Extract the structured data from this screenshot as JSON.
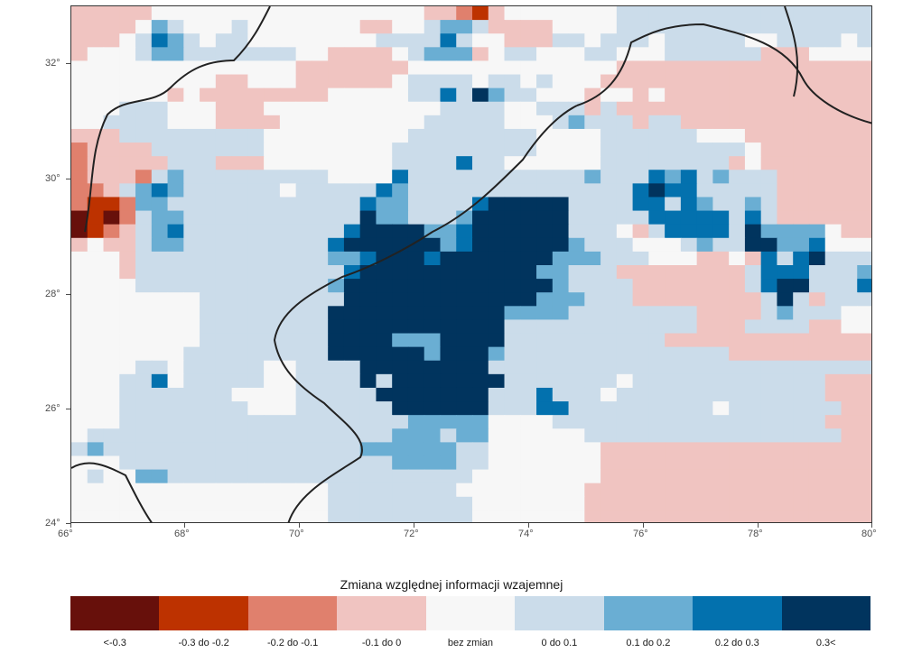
{
  "legend": {
    "title": "Zmiana względnej informacji wzajemnej",
    "classes": [
      {
        "label": "<-0.3",
        "color": "#67100b"
      },
      {
        "label": "-0.3 do -0.2",
        "color": "#bd3200"
      },
      {
        "label": "-0.2 do -0.1",
        "color": "#e0806d"
      },
      {
        "label": "-0.1 do 0",
        "color": "#f0c4c1"
      },
      {
        "label": "bez zmian",
        "color": "#f7f7f7"
      },
      {
        "label": "0 do 0.1",
        "color": "#cbdcea"
      },
      {
        "label": "0.1 do 0.2",
        "color": "#6aaed3"
      },
      {
        "label": "0.2 do 0.3",
        "color": "#0371ae"
      },
      {
        "label": "0.3<",
        "color": "#01345e"
      }
    ]
  },
  "axes": {
    "x": {
      "range": [
        66,
        80
      ],
      "ticks": [
        "66°",
        "68°",
        "70°",
        "72°",
        "74°",
        "76°",
        "78°",
        "80°"
      ]
    },
    "y": {
      "range": [
        24,
        33
      ],
      "ticks": [
        "24°",
        "26°",
        "28°",
        "30°",
        "32°"
      ]
    }
  },
  "chart_data": {
    "type": "heatmap",
    "xlim": [
      66,
      80
    ],
    "ylim": [
      24,
      33
    ],
    "cell_size_deg": 0.5,
    "legend_position": "bottom",
    "grid": false,
    "features": [
      "country borders",
      "coastline"
    ],
    "rows_north_to_south": [
      "33333444444444444444443321344444445555555555555555",
      "33334654445444444433445665333344445555555555555555",
      "33345765455444444445555754433355455545555544555545",
      "34445665555555443333456663455444554445555553334444",
      "44444444444444333333344444444444443333333333333333",
      "44444444433444333333455554554544433333333333333333",
      "44444434333333334444455758655444344343333333333333",
      "44455544433344444444444555544555353333333333333333",
      "44555544433334444444445555544456555355333333333333",
      "33355555555544444444455555555444455555544433333333",
      "23333555555544444444555555555444455555555543333333",
      "23333355533344444444555575544444455555555343333333",
      "23332565555555554444755555555555655576756555333333",
      "22356765555554555557655555555555555787755555333333",
      "21126655555555555576655557888885555775765565333333",
      "01025665555555555586655568888885555577777575333333",
      "01235675555555555788886678888885554357777586666433",
      "34335665555555557888888678888886555444565588667444",
      "44435555555555556678887888888866655544433437578555",
      "44435555555555555788888888888665553333333357775556",
      "44445555555555556888888888888865555333333357885557",
      "44444444555555555888888888888666555333333335853555",
      "44444444555555558888888888866665555555533335655544",
      "44444444555555558888888888855555555555533355553344",
      "44444444555555558888666888855555555553333333333333",
      "44444445555555558888886888655555555555555333333333",
      "44445545555544555588888888555555555555555555555555",
      "44455745555544555585888888855555554555555555555333",
      "44455555554444555558888888555755545555555555555333",
      "44455555555444555555888888555775555555554555555533",
      "44455555555555555555566666444455555555555555555333",
      "45555555555555555555666566444444555555555555555533",
      "56555555555555555566666655444444433333333333333333",
      "44455555555555555555666655444444433333333333333333",
      "45446655555555555555555554444444433333333333333333",
      "44444444444444445555555544444444333333333333333333",
      "44444444444444445555555554444444333333333333333333",
      "44444444444444445555555554444444333333333333333333"
    ]
  }
}
